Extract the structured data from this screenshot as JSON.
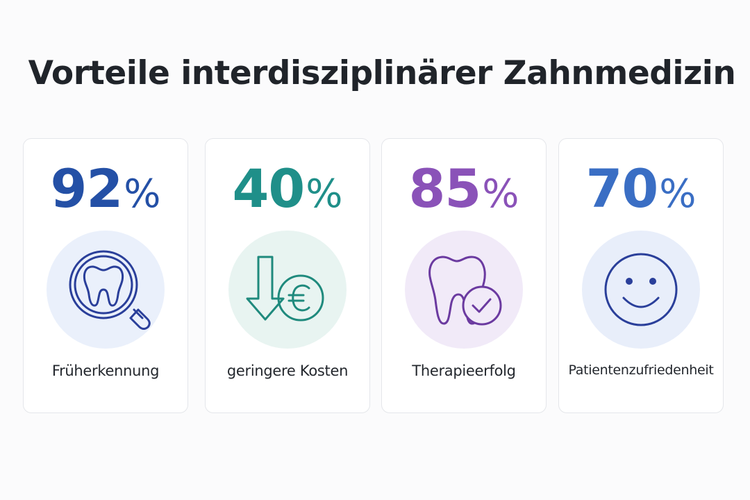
{
  "title": "Vorteile interdisziplinärer Zahnmedizin",
  "cards": [
    {
      "value": "92",
      "unit": "%",
      "label": "Früherkennung",
      "icon": "tooth-magnifier-icon",
      "color": "#2450a6",
      "badge_color": "#eaf0fb"
    },
    {
      "value": "40",
      "unit": "%",
      "label": "geringere Kosten",
      "icon": "arrow-down-euro-icon",
      "color": "#1f8f89",
      "badge_color": "#e8f4f1"
    },
    {
      "value": "85",
      "unit": "%",
      "label": "Therapieerfolg",
      "icon": "tooth-check-icon",
      "color": "#8a52b8",
      "badge_color": "#f1eaf8"
    },
    {
      "value": "70",
      "unit": "%",
      "label": "Patientenzufriedenheit",
      "icon": "smiley-face-icon",
      "color": "#3a6ec4",
      "badge_color": "#e8eefa"
    }
  ]
}
